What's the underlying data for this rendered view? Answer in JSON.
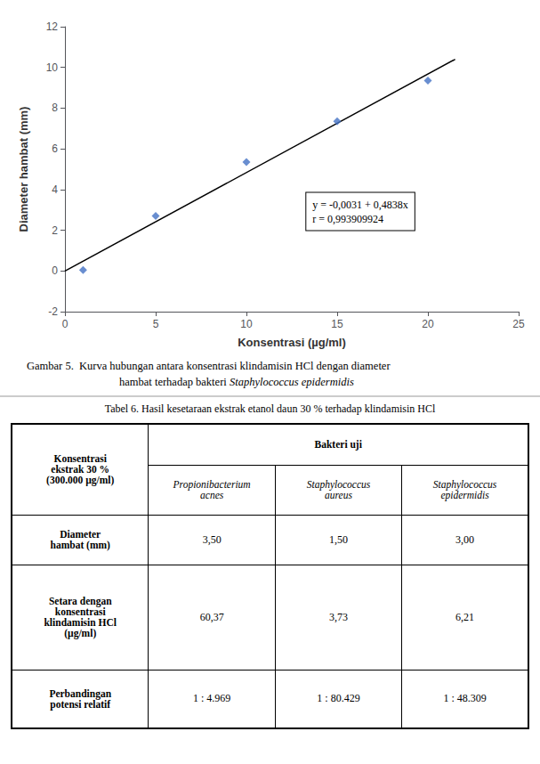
{
  "chart_data": [
    {
      "type": "scatter",
      "xlabel": "Konsentrasi (µg/ml)",
      "ylabel": "Diameter hambat (mm)",
      "series": [
        {
          "type": "line",
          "x": [
            0,
            21.5
          ],
          "values": [
            -0.0031,
            10.3986
          ],
          "color": "#000000"
        },
        {
          "type": "scatter",
          "x": [
            1,
            5,
            10,
            15,
            20
          ],
          "values": [
            0.04,
            2.7,
            5.35,
            7.35,
            9.35
          ],
          "color": "#4472C4",
          "marker": "diamond"
        }
      ],
      "xlim": [
        0,
        25
      ],
      "xticks": [
        0,
        5,
        10,
        15,
        20,
        25
      ],
      "ylim": [
        -2,
        12
      ],
      "yticks": [
        -2,
        0,
        2,
        4,
        6,
        8,
        10,
        12
      ],
      "grid": false,
      "annotations": [
        "y = -0,0031 + 0,4838x",
        "r = 0,993909924"
      ],
      "caption": [
        [
          {
            "text": "Gambar 5.  Kurva hubungan antara konsentrasi klindamisin HCl dengan diameter"
          }
        ],
        [
          {
            "text": "hambat terhadap bakteri "
          },
          {
            "text": "Staphylococcus epidermidis",
            "style": "italic"
          }
        ]
      ]
    },
    {
      "type": "table",
      "title": "Tabel 6. Hasil kesetaraan ekstrak etanol daun 30 % terhadap klindamisin HCl",
      "corner": "Konsentrasi\nekstrak 30 %\n(300.000 µg/ml)",
      "span_header": "Bakteri uji",
      "columns": [
        "Propionibacterium\nacnes",
        "Staphylococcus\naureus",
        "Staphylococcus\nepidermidis"
      ],
      "rows": [
        {
          "label": "Diameter\nhambat (mm)",
          "values": [
            "3,50",
            "1,50",
            "3,00"
          ]
        },
        {
          "label": "Setara dengan\nkonsentrasi\nklindamisin HCl\n(µg/ml)",
          "values": [
            "60,37",
            "3,73",
            "6,21"
          ]
        },
        {
          "label": "Perbandingan\npotensi relatif",
          "values": [
            "1 : 4.969",
            "1 : 80.429",
            "1 : 48.309"
          ]
        }
      ]
    }
  ]
}
